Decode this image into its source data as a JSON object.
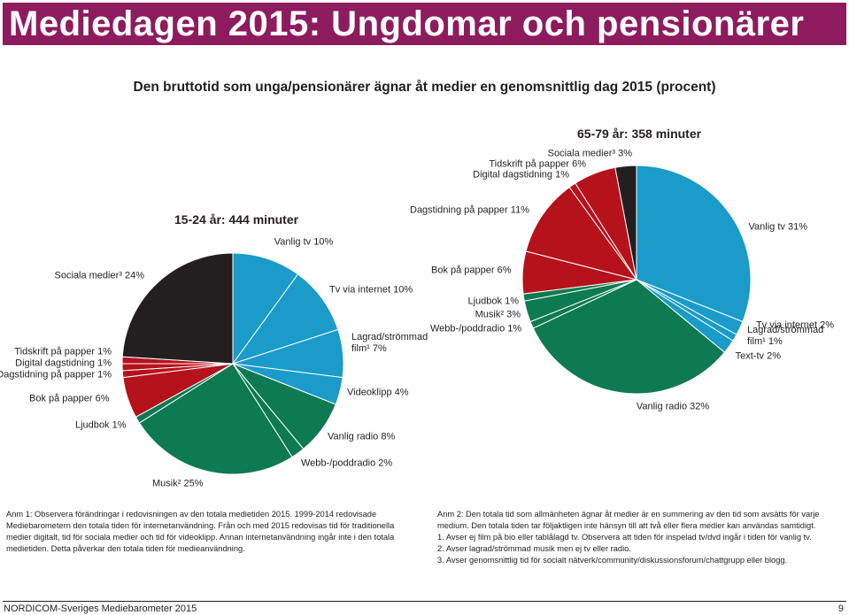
{
  "header": {
    "title": "Mediedagen 2015: Ungdomar och pensionärer",
    "subtitle": "Den bruttotid som unga/pensionärer ägnar åt medier en genomsnittlig dag 2015 (procent)"
  },
  "chart_data": [
    {
      "type": "pie",
      "title": "15-24 år: 444 minuter",
      "categories": [
        "Vanlig tv",
        "Tv via internet",
        "Lagrad/strömmad film¹",
        "Videoklipp",
        "Vanlig radio",
        "Webb-/poddradio",
        "Musik²",
        "Ljudbok",
        "Bok på papper",
        "Dagstidning på papper",
        "Digital dagstidning",
        "Tidskrift på papper",
        "Sociala medier³"
      ],
      "values": [
        10,
        10,
        7,
        4,
        8,
        2,
        25,
        1,
        6,
        1,
        1,
        1,
        24
      ],
      "value_labels": [
        "10%",
        "10%",
        "7%",
        "4%",
        "8%",
        "2%",
        "25%",
        "1%",
        "6%",
        "1%",
        "1%",
        "1%",
        "24%"
      ],
      "colors": [
        "#1a9bc9",
        "#1a9bc9",
        "#1a9bc9",
        "#1a9bc9",
        "#0d7a52",
        "#0d7a52",
        "#0d7a52",
        "#0d7a52",
        "#b5121b",
        "#b5121b",
        "#b5121b",
        "#b5121b",
        "#231f20"
      ]
    },
    {
      "type": "pie",
      "title": "65-79 år: 358 minuter",
      "categories": [
        "Vanlig tv",
        "Tv via internet",
        "Lagrad/strömmad film¹",
        "Text-tv",
        "Vanlig radio",
        "Webb-/poddradio",
        "Musik²",
        "Ljudbok",
        "Bok på papper",
        "Dagstidning på papper",
        "Digital dagstidning",
        "Tidskrift på papper",
        "Sociala medier³"
      ],
      "values": [
        31,
        2,
        1,
        2,
        32,
        1,
        3,
        1,
        6,
        11,
        1,
        6,
        3
      ],
      "value_labels": [
        "31%",
        "2%",
        "1%",
        "2%",
        "32%",
        "1%",
        "3%",
        "1%",
        "6%",
        "11%",
        "1%",
        "6%",
        "3%"
      ],
      "colors": [
        "#1a9bc9",
        "#1a9bc9",
        "#1a9bc9",
        "#1a9bc9",
        "#0d7a52",
        "#0d7a52",
        "#0d7a52",
        "#0d7a52",
        "#b5121b",
        "#b5121b",
        "#b5121b",
        "#b5121b",
        "#231f20"
      ]
    }
  ],
  "notes": {
    "left": "Anm 1: Observera förändringar i redovisningen av den totala medietiden 2015. 1999-2014 redovisade Mediebarometern den totala tiden för internetanvändning. Från och med 2015 redovisas tid för traditionella medier digitalt, tid för sociala medier och tid för videoklipp. Annan internetanvändning ingår inte i den totala medietiden. Detta påverkar den totala tiden för medieanvändning.",
    "right": [
      "Anm 2: Den totala tid som allmänheten ägnar åt medier är en summering av den tid som avsätts för varje medium. Den totala tiden tar följaktligen inte hänsyn till att två eller flera medier kan användas samtidigt.",
      "1. Avser ej film på bio eller tablålagd tv. Observera att tiden för inspelad tv/dvd ingår i tiden för vanlig tv.",
      "2. Avser lagrad/strömmad musik men ej tv eller radio.",
      "3. Avser genomsnittlig tid för socialt nätverk/community/diskussionsforum/chattgrupp eller blogg."
    ]
  },
  "footer": {
    "source": "NORDICOM-Sveriges Mediebarometer 2015",
    "page": "9"
  }
}
